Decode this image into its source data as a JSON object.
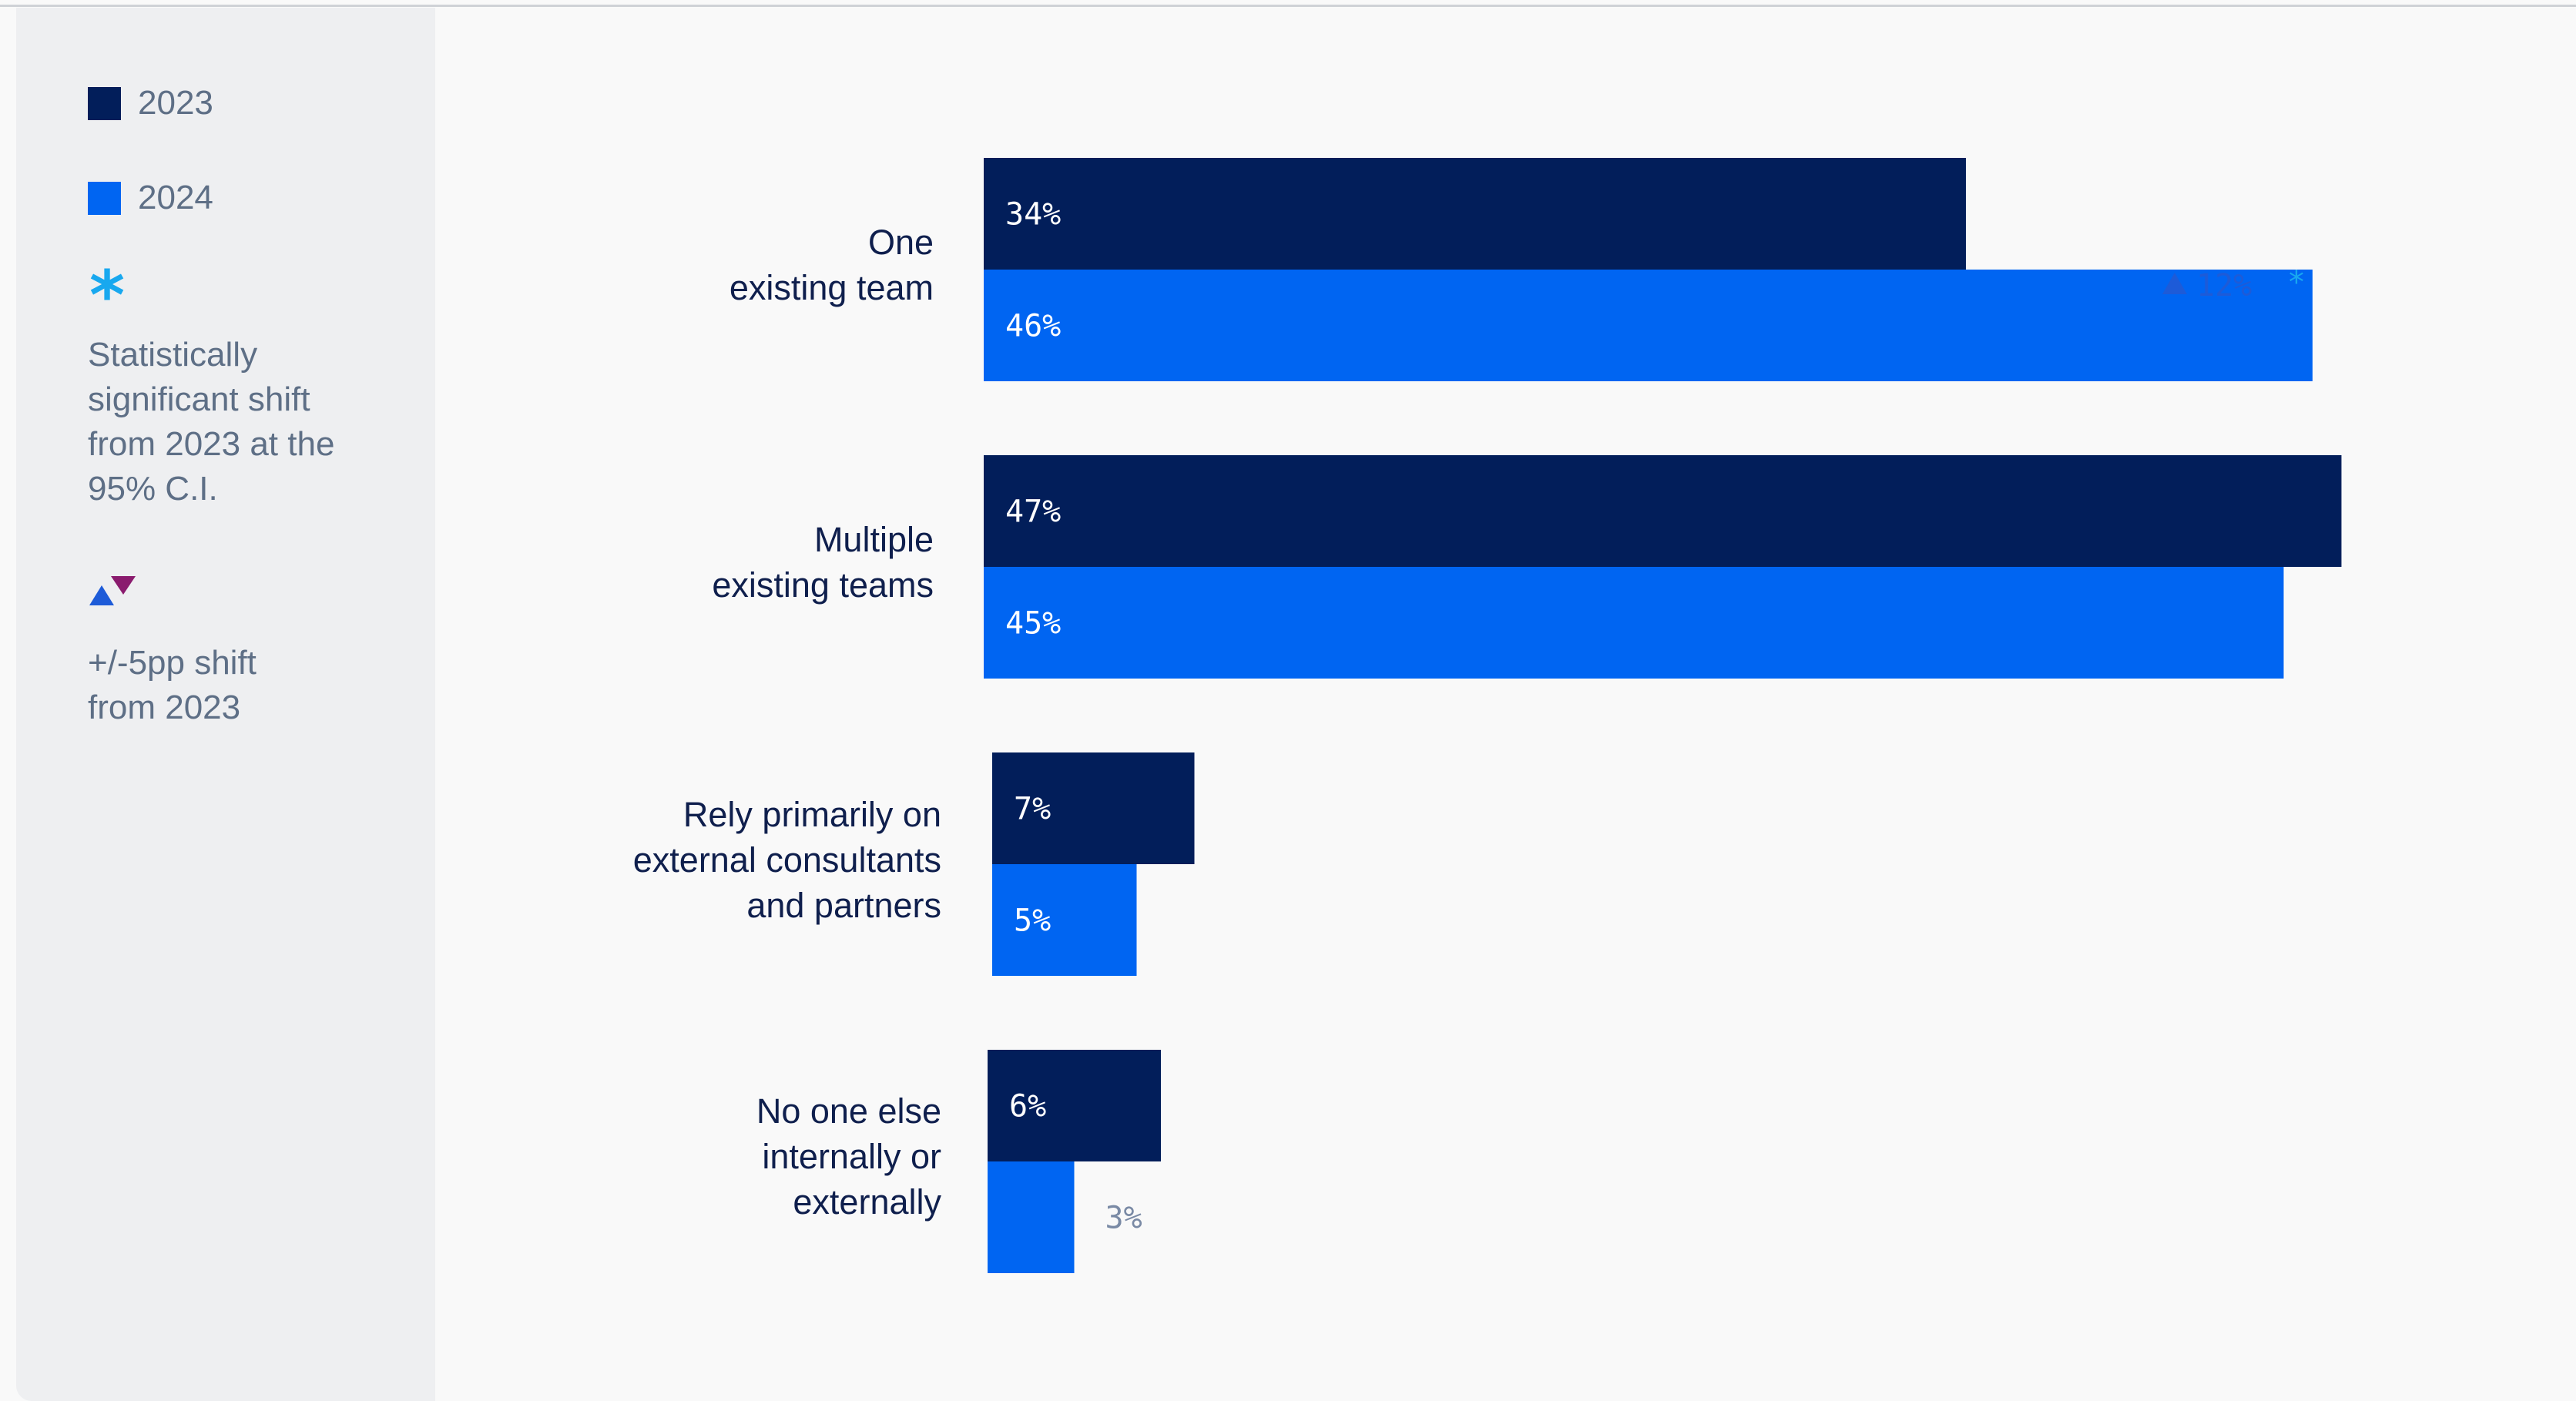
{
  "legend": {
    "series": [
      {
        "label": "2023",
        "color": "#021e5a"
      },
      {
        "label": "2024",
        "color": "#0065f2"
      }
    ],
    "significance_symbol": "*",
    "significance_text": "Statistically\nsignificant shift\nfrom 2023 at the\n95% C.I.",
    "shift_text": "+/-5pp shift\nfrom 2023",
    "up_color": "#1d5bd8",
    "down_color": "#8a1b6e",
    "star_color": "#18a8ef"
  },
  "chart_data": {
    "type": "bar",
    "orientation": "horizontal",
    "categories": [
      "One\nexisting team",
      "Multiple\nexisting teams",
      "Rely primarily on\nexternal consultants\nand partners",
      "No one else\ninternally or\nexternally"
    ],
    "series": [
      {
        "name": "2023",
        "values": [
          34,
          47,
          7,
          6
        ],
        "labels": [
          "34%",
          "47%",
          "7%",
          "6%"
        ],
        "color": "#021e5a"
      },
      {
        "name": "2024",
        "values": [
          46,
          45,
          5,
          3
        ],
        "labels": [
          "46%",
          "45%",
          "5%",
          "3%"
        ],
        "color": "#0065f2"
      }
    ],
    "annotations": [
      {
        "category_index": 0,
        "direction": "up",
        "text": "12%*"
      }
    ],
    "xlim": [
      0,
      50
    ],
    "grid": false,
    "legend_position": "left panel"
  }
}
